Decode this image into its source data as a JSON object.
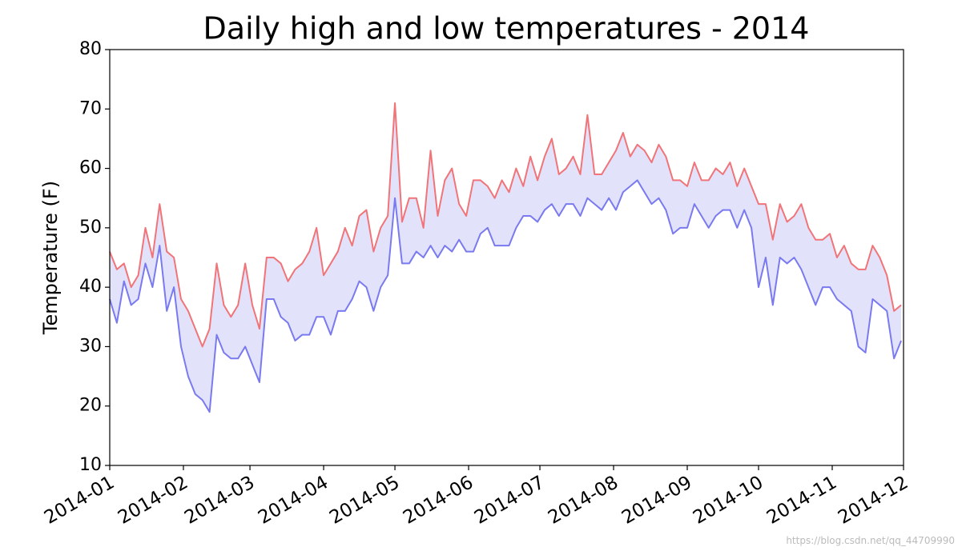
{
  "chart_data": {
    "type": "line",
    "title": "Daily high and low temperatures - 2014",
    "y_label": "Temperature (F)",
    "watermark": "https://blog.csdn.net/qq_44709990",
    "x": [
      0,
      3,
      6,
      9,
      12,
      15,
      18,
      21,
      24,
      27,
      30,
      33,
      36,
      39,
      42,
      45,
      48,
      51,
      54,
      57,
      60,
      63,
      66,
      69,
      72,
      75,
      78,
      81,
      84,
      87,
      90,
      93,
      96,
      99,
      102,
      105,
      108,
      111,
      114,
      117,
      120,
      123,
      126,
      129,
      132,
      135,
      138,
      141,
      144,
      147,
      150,
      153,
      156,
      159,
      162,
      165,
      168,
      171,
      174,
      177,
      180,
      183,
      186,
      189,
      192,
      195,
      198,
      201,
      204,
      207,
      210,
      213,
      216,
      219,
      222,
      225,
      228,
      231,
      234,
      237,
      240,
      243,
      246,
      249,
      252,
      255,
      258,
      261,
      264,
      267,
      270,
      273,
      276,
      279,
      282,
      285,
      288,
      291,
      294,
      297,
      300,
      303,
      306,
      309,
      312,
      315,
      318,
      321,
      324,
      327,
      330,
      333
    ],
    "xlim": [
      0,
      334
    ],
    "xticks": [
      {
        "value": 0,
        "label": "2014-01"
      },
      {
        "value": 31,
        "label": "2014-02"
      },
      {
        "value": 59,
        "label": "2014-03"
      },
      {
        "value": 90,
        "label": "2014-04"
      },
      {
        "value": 120,
        "label": "2014-05"
      },
      {
        "value": 151,
        "label": "2014-06"
      },
      {
        "value": 181,
        "label": "2014-07"
      },
      {
        "value": 212,
        "label": "2014-08"
      },
      {
        "value": 243,
        "label": "2014-09"
      },
      {
        "value": 273,
        "label": "2014-10"
      },
      {
        "value": 304,
        "label": "2014-11"
      },
      {
        "value": 334,
        "label": "2014-12"
      }
    ],
    "ylim": [
      10,
      80
    ],
    "yticks": [
      10,
      20,
      30,
      40,
      50,
      60,
      70,
      80
    ],
    "fill_between": true,
    "fill_color": "#e2e2fb",
    "series": [
      {
        "color": "#f07478",
        "values": [
          46,
          43,
          44,
          40,
          42,
          50,
          45,
          54,
          46,
          45,
          38,
          36,
          33,
          30,
          33,
          44,
          37,
          35,
          37,
          44,
          37,
          33,
          45,
          45,
          44,
          41,
          43,
          44,
          46,
          50,
          42,
          44,
          46,
          50,
          47,
          52,
          53,
          46,
          50,
          52,
          71,
          51,
          55,
          55,
          50,
          63,
          52,
          58,
          60,
          54,
          52,
          58,
          58,
          57,
          55,
          58,
          56,
          60,
          57,
          62,
          58,
          62,
          65,
          59,
          60,
          62,
          59,
          69,
          59,
          59,
          61,
          63,
          66,
          62,
          64,
          63,
          61,
          64,
          62,
          58,
          58,
          57,
          61,
          58,
          58,
          60,
          59,
          61,
          57,
          60,
          57,
          54,
          54,
          48,
          54,
          51,
          52,
          54,
          50,
          48,
          48,
          49,
          45,
          47,
          44,
          43,
          43,
          47,
          45,
          42,
          36,
          37
        ]
      },
      {
        "color": "#7a7af0",
        "values": [
          38,
          34,
          41,
          37,
          38,
          44,
          40,
          47,
          36,
          40,
          30,
          25,
          22,
          21,
          19,
          32,
          29,
          28,
          28,
          30,
          27,
          24,
          38,
          38,
          35,
          34,
          31,
          32,
          32,
          35,
          35,
          32,
          36,
          36,
          38,
          41,
          40,
          36,
          40,
          42,
          55,
          44,
          44,
          46,
          45,
          47,
          45,
          47,
          46,
          48,
          46,
          46,
          49,
          50,
          47,
          47,
          47,
          50,
          52,
          52,
          51,
          53,
          54,
          52,
          54,
          54,
          52,
          55,
          54,
          53,
          55,
          53,
          56,
          57,
          58,
          56,
          54,
          55,
          53,
          49,
          50,
          50,
          54,
          52,
          50,
          52,
          53,
          53,
          50,
          53,
          50,
          40,
          45,
          37,
          45,
          44,
          45,
          43,
          40,
          37,
          40,
          40,
          38,
          37,
          36,
          30,
          29,
          38,
          37,
          36,
          28,
          31
        ]
      }
    ]
  }
}
